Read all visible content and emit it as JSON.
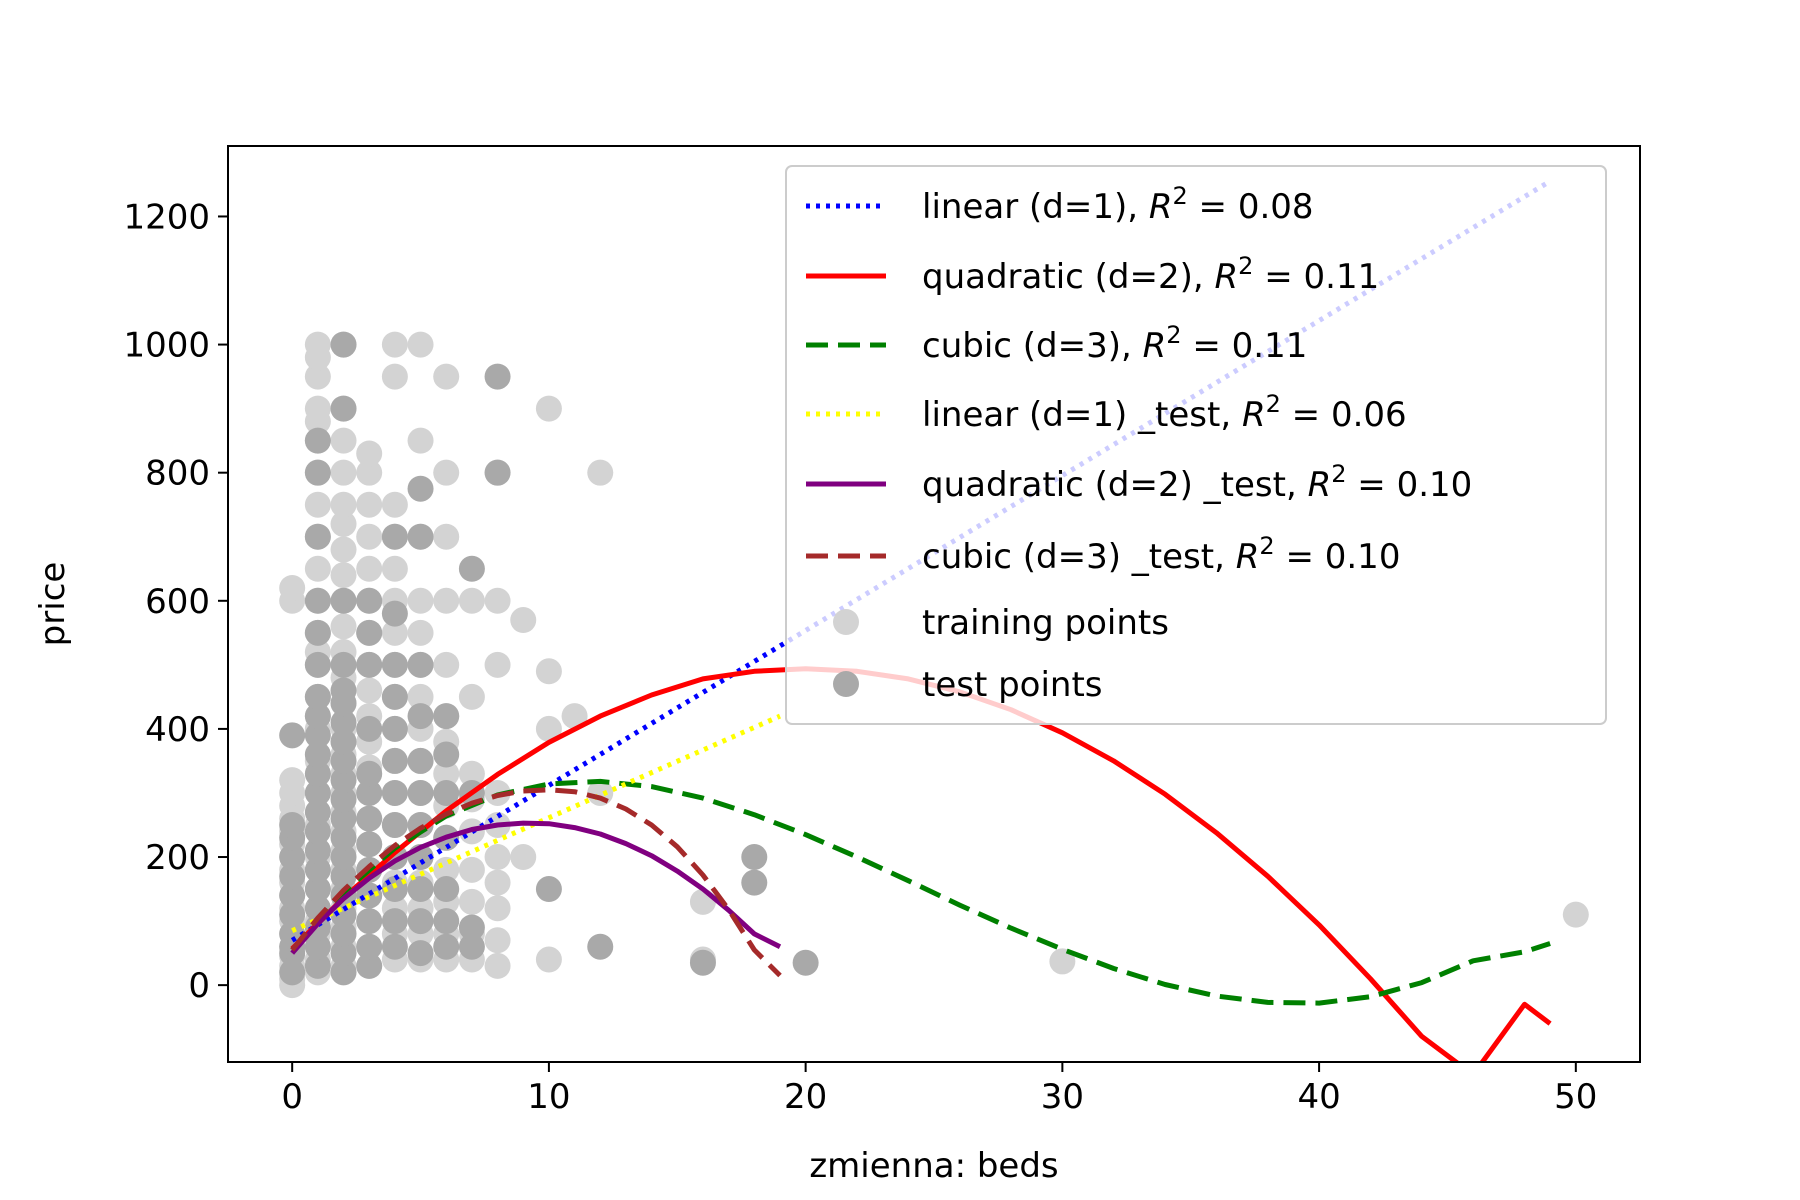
{
  "chart_data": {
    "type": "scatter",
    "xlabel": "zmienna: beds",
    "ylabel": "price",
    "xlim": [
      -2.5,
      52.5
    ],
    "ylim": [
      -120,
      1310
    ],
    "xticks": [
      0,
      10,
      20,
      30,
      40,
      50
    ],
    "yticks": [
      0,
      200,
      400,
      600,
      800,
      1000,
      1200
    ],
    "grid": false,
    "legend_position": "top-right",
    "series": [
      {
        "name": "linear (d=1), R^2 = 0.08",
        "kind": "line",
        "color": "#0000ff",
        "style": "dotted",
        "x": [
          0,
          49
        ],
        "y": [
          70,
          1255
        ]
      },
      {
        "name": "quadratic (d=2), R^2 = 0.11",
        "kind": "line",
        "color": "#ff0000",
        "style": "solid",
        "x": [
          0,
          2,
          4,
          6,
          8,
          10,
          12,
          14,
          16,
          18,
          20,
          22,
          24,
          26,
          28,
          30,
          32,
          34,
          36,
          38,
          40,
          42,
          44,
          46,
          48,
          49
        ],
        "y": [
          57,
          136,
          207,
          272,
          329,
          379,
          420,
          453,
          478,
          490,
          494,
          490,
          478,
          458,
          430,
          394,
          350,
          298,
          238,
          170,
          94,
          10,
          -80,
          -140,
          -30,
          -60
        ]
      },
      {
        "name": "cubic (d=3), R^2 = 0.11",
        "kind": "line",
        "color": "#008000",
        "style": "dashed",
        "x": [
          0,
          2,
          4,
          6,
          8,
          10,
          12,
          14,
          16,
          18,
          20,
          22,
          24,
          26,
          28,
          30,
          32,
          34,
          36,
          38,
          40,
          42,
          44,
          46,
          48,
          49
        ],
        "y": [
          55,
          145,
          214,
          264,
          297,
          314,
          318,
          310,
          292,
          266,
          235,
          200,
          163,
          125,
          89,
          56,
          26,
          1,
          -17,
          -27,
          -28,
          -18,
          4,
          38,
          52,
          65
        ]
      },
      {
        "name": "linear (d=1) _test, R^2 = 0.06",
        "kind": "line",
        "color": "#ffff00",
        "style": "dotted",
        "x": [
          0,
          19
        ],
        "y": [
          85,
          420
        ]
      },
      {
        "name": "quadratic (d=2) _test, R^2 = 0.10",
        "kind": "line",
        "color": "#800080",
        "style": "solid",
        "x": [
          0,
          1,
          2,
          3,
          4,
          5,
          6,
          7,
          8,
          9,
          10,
          11,
          12,
          13,
          14,
          15,
          16,
          17,
          18,
          19
        ],
        "y": [
          50,
          96,
          135,
          167,
          194,
          215,
          231,
          243,
          250,
          253,
          252,
          246,
          236,
          221,
          202,
          178,
          150,
          117,
          80,
          60
        ]
      },
      {
        "name": "cubic (d=3) _test, R^2 = 0.10",
        "kind": "line",
        "color": "#a52a2a",
        "style": "dashed",
        "x": [
          0,
          1,
          2,
          3,
          4,
          5,
          6,
          7,
          8,
          9,
          10,
          11,
          12,
          13,
          14,
          15,
          16,
          17,
          18,
          19
        ],
        "y": [
          55,
          105,
          148,
          185,
          218,
          245,
          267,
          284,
          296,
          303,
          305,
          302,
          292,
          275,
          250,
          216,
          172,
          118,
          55,
          15
        ]
      },
      {
        "name": "training points",
        "kind": "scatter",
        "color": "#d3d3d3",
        "x": [
          0,
          0,
          0,
          0,
          0,
          0,
          0,
          0,
          0,
          0,
          0,
          0,
          0,
          0,
          0,
          0,
          0,
          0,
          0,
          0,
          1,
          1,
          1,
          1,
          1,
          1,
          1,
          1,
          1,
          1,
          1,
          1,
          1,
          1,
          1,
          1,
          1,
          1,
          1,
          1,
          1,
          1,
          1,
          1,
          1,
          1,
          1,
          2,
          2,
          2,
          2,
          2,
          2,
          2,
          2,
          2,
          2,
          2,
          2,
          2,
          2,
          2,
          2,
          2,
          2,
          2,
          2,
          2,
          2,
          2,
          2,
          2,
          2,
          2,
          3,
          3,
          3,
          3,
          3,
          3,
          3,
          3,
          3,
          3,
          3,
          3,
          3,
          3,
          3,
          3,
          3,
          3,
          3,
          3,
          4,
          4,
          4,
          4,
          4,
          4,
          4,
          4,
          4,
          4,
          4,
          4,
          4,
          4,
          4,
          4,
          4,
          4,
          5,
          5,
          5,
          5,
          5,
          5,
          5,
          5,
          5,
          5,
          5,
          5,
          5,
          5,
          5,
          5,
          6,
          6,
          6,
          6,
          6,
          6,
          6,
          6,
          6,
          6,
          6,
          6,
          6,
          6,
          7,
          7,
          7,
          7,
          7,
          7,
          7,
          7,
          7,
          8,
          8,
          8,
          8,
          8,
          8,
          8,
          8,
          8,
          8,
          9,
          9,
          10,
          10,
          10,
          10,
          11,
          12,
          12,
          16,
          16,
          30,
          50
        ],
        "y": [
          10,
          30,
          45,
          60,
          80,
          100,
          120,
          140,
          160,
          180,
          200,
          220,
          240,
          260,
          280,
          300,
          320,
          600,
          620,
          0,
          20,
          40,
          60,
          80,
          100,
          150,
          200,
          250,
          300,
          350,
          400,
          450,
          500,
          550,
          600,
          650,
          700,
          750,
          800,
          850,
          900,
          950,
          980,
          1000,
          880,
          420,
          520,
          30,
          60,
          90,
          120,
          150,
          180,
          210,
          240,
          270,
          300,
          330,
          360,
          400,
          440,
          480,
          520,
          560,
          600,
          640,
          680,
          720,
          750,
          800,
          850,
          900,
          1000,
          380,
          30,
          60,
          100,
          140,
          180,
          220,
          260,
          300,
          340,
          380,
          420,
          460,
          500,
          550,
          600,
          650,
          700,
          750,
          800,
          830,
          40,
          80,
          120,
          160,
          200,
          250,
          300,
          350,
          400,
          450,
          500,
          550,
          600,
          650,
          700,
          750,
          950,
          1000,
          40,
          80,
          120,
          160,
          200,
          250,
          300,
          350,
          400,
          450,
          500,
          550,
          600,
          700,
          850,
          1000,
          40,
          80,
          130,
          180,
          230,
          280,
          330,
          380,
          420,
          500,
          600,
          700,
          800,
          950,
          40,
          80,
          130,
          180,
          240,
          290,
          330,
          450,
          600,
          30,
          70,
          120,
          160,
          200,
          250,
          300,
          500,
          600,
          800,
          200,
          570,
          40,
          400,
          490,
          900,
          420,
          800,
          300,
          130,
          40,
          37,
          110
        ]
      },
      {
        "name": "test points",
        "kind": "scatter",
        "color": "#a9a9a9",
        "x": [
          0,
          0,
          0,
          0,
          0,
          0,
          0,
          0,
          0,
          0,
          0,
          1,
          1,
          1,
          1,
          1,
          1,
          1,
          1,
          1,
          1,
          1,
          1,
          1,
          1,
          1,
          1,
          1,
          1,
          1,
          1,
          1,
          2,
          2,
          2,
          2,
          2,
          2,
          2,
          2,
          2,
          2,
          2,
          2,
          2,
          2,
          2,
          2,
          2,
          2,
          2,
          2,
          3,
          3,
          3,
          3,
          3,
          3,
          3,
          3,
          3,
          3,
          3,
          3,
          3,
          4,
          4,
          4,
          4,
          4,
          4,
          4,
          4,
          4,
          4,
          4,
          4,
          5,
          5,
          5,
          5,
          5,
          5,
          5,
          5,
          5,
          5,
          5,
          6,
          6,
          6,
          6,
          6,
          6,
          6,
          7,
          7,
          7,
          7,
          8,
          8,
          10,
          12,
          16,
          18,
          18,
          20
        ],
        "y": [
          20,
          50,
          80,
          110,
          140,
          170,
          200,
          230,
          250,
          390,
          60,
          30,
          60,
          90,
          120,
          150,
          180,
          210,
          240,
          270,
          300,
          330,
          360,
          390,
          420,
          450,
          500,
          550,
          600,
          700,
          800,
          850,
          20,
          50,
          80,
          110,
          140,
          170,
          200,
          230,
          260,
          290,
          320,
          350,
          380,
          410,
          440,
          500,
          600,
          900,
          1000,
          460,
          30,
          60,
          100,
          140,
          180,
          220,
          260,
          300,
          330,
          400,
          500,
          550,
          600,
          60,
          100,
          150,
          200,
          250,
          300,
          350,
          400,
          450,
          500,
          580,
          700,
          50,
          100,
          150,
          200,
          250,
          300,
          350,
          420,
          500,
          700,
          775,
          60,
          100,
          150,
          230,
          300,
          360,
          420,
          60,
          90,
          300,
          650,
          800,
          950,
          150,
          60,
          35,
          160,
          200,
          35
        ]
      }
    ],
    "legend": [
      {
        "text": "linear (d=1), ",
        "r2": "0.08"
      },
      {
        "text": "quadratic (d=2), ",
        "r2": "0.11"
      },
      {
        "text": "cubic (d=3), ",
        "r2": "0.11"
      },
      {
        "text": "linear (d=1) _test, ",
        "r2": "0.06"
      },
      {
        "text": "quadratic (d=2) _test, ",
        "r2": "0.10"
      },
      {
        "text": "cubic (d=3) _test, ",
        "r2": "0.10"
      },
      {
        "text": "training points",
        "r2": null
      },
      {
        "text": "test points",
        "r2": null
      }
    ]
  }
}
